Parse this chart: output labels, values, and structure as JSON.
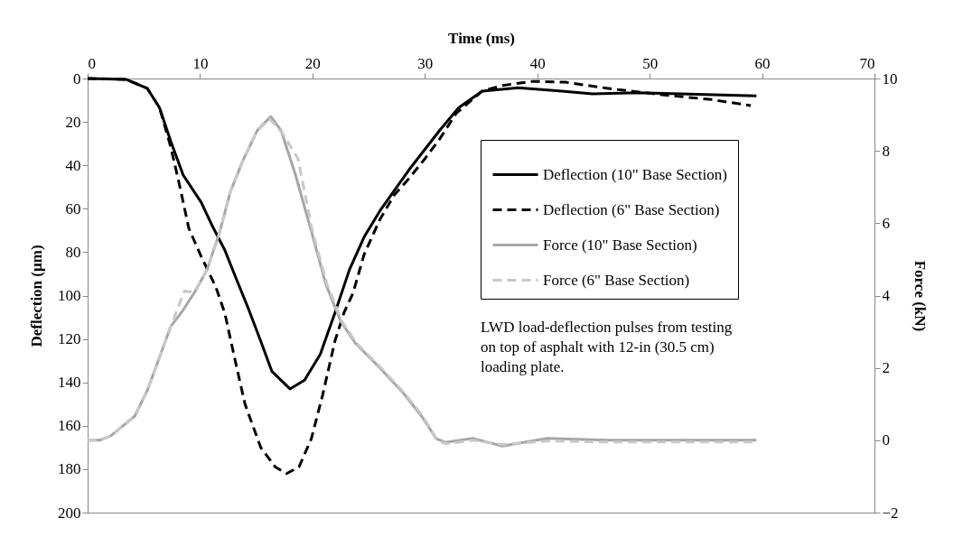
{
  "chart_data": {
    "type": "line",
    "xlabel": "Time (ms)",
    "ylabel": "Deflection (µm)",
    "y2label": "Force (kN)",
    "xlim": [
      0,
      70
    ],
    "xticks": [
      0,
      10,
      20,
      30,
      40,
      50,
      60,
      70
    ],
    "ylim": [
      200,
      0
    ],
    "yticks": [
      0,
      20,
      40,
      60,
      80,
      100,
      120,
      140,
      160,
      180,
      200
    ],
    "y2lim": [
      -2,
      10
    ],
    "y2ticks": [
      -2,
      0,
      2,
      4,
      6,
      8,
      10
    ],
    "grid": false,
    "legend": "top right",
    "marker": "none",
    "annotations": [
      "LWD load-deflection pulses from testing on top of asphalt with 12-in (30.5 cm) loading plate."
    ],
    "series": [
      {
        "name": "Deflection (10\" Base Section)",
        "color": "#000000",
        "line_style": "solid",
        "x": [
          0,
          3.4,
          5.3,
          6.4,
          7.4,
          8.5,
          10.1,
          11.1,
          12.2,
          13.2,
          14.3,
          15.4,
          16.4,
          18,
          19.3,
          20.7,
          22,
          23.3,
          24.6,
          26,
          28.6,
          31.3,
          33,
          35.1,
          38.3,
          42.2,
          44.9,
          48.9,
          52.8,
          59.5
        ],
        "values": [
          0,
          0.4,
          4.5,
          13.5,
          29,
          44.5,
          57,
          68,
          79,
          92,
          106,
          121,
          135,
          143,
          139,
          127,
          108,
          88,
          73,
          61,
          42,
          24,
          13.5,
          5.8,
          4.3,
          5.8,
          7.1,
          6.5,
          7.1,
          8
        ]
      },
      {
        "name": "Deflection (6\" Base Section)",
        "color": "#000000",
        "line_style": "dashed",
        "x": [
          0,
          3.4,
          5.3,
          6.4,
          7.4,
          8.2,
          9,
          10.1,
          11.4,
          12.2,
          13,
          14,
          15.4,
          16.7,
          17.7,
          18.8,
          19.9,
          20.9,
          22,
          22.8,
          23.6,
          24.6,
          26,
          27.3,
          28.6,
          30,
          31.3,
          32.8,
          35.1,
          36.9,
          39.6,
          42.5,
          46.2,
          51.5,
          55.5,
          59
        ],
        "values": [
          0,
          0.4,
          4.5,
          13.5,
          31.6,
          49.7,
          69,
          82,
          96,
          108,
          127,
          150,
          170,
          179,
          182,
          179,
          166,
          146,
          121,
          108,
          99,
          81,
          65,
          53.5,
          46,
          37,
          28,
          16,
          5.8,
          3.2,
          1.3,
          1.7,
          4.5,
          7.7,
          9.7,
          12.5
        ]
      },
      {
        "name": "Force (10\" Base Section)",
        "color": "#a6a6a6",
        "line_style": "solid",
        "axis": "y2",
        "x": [
          0,
          1.1,
          2.1,
          4.2,
          5.3,
          6.4,
          7.4,
          8.5,
          9.5,
          10.6,
          11.7,
          12.7,
          13.8,
          15.1,
          16.3,
          17.2,
          18.5,
          19.9,
          21.2,
          22.5,
          23.8,
          26,
          28.1,
          29.7,
          31,
          31.8,
          34.3,
          36.9,
          40.9,
          46.2,
          59.5
        ],
        "values": [
          0,
          0,
          0.13,
          0.67,
          1.37,
          2.3,
          3.15,
          3.6,
          4.08,
          4.7,
          5.7,
          6.87,
          7.72,
          8.57,
          8.95,
          8.57,
          7.33,
          5.78,
          4.31,
          3.3,
          2.69,
          2,
          1.3,
          0.67,
          0.05,
          -0.06,
          0.05,
          -0.16,
          0.05,
          0,
          0
        ]
      },
      {
        "name": "Force (6\" Base Section)",
        "color": "#c8c8c8",
        "line_style": "dashed",
        "axis": "y2",
        "x": [
          0,
          1.1,
          2.1,
          4.2,
          5.3,
          6.4,
          7.4,
          8.6,
          9.5,
          10.6,
          11.7,
          12.7,
          13.8,
          15.1,
          16.2,
          17.3,
          18.7,
          20,
          21.3,
          22.6,
          23.9,
          26.1,
          28.2,
          29.8,
          31.1,
          31.9,
          34.3,
          36.9,
          40.9,
          46.2,
          59.5
        ],
        "values": [
          0,
          0,
          0.13,
          0.67,
          1.37,
          2.3,
          3.15,
          4.12,
          4.1,
          4.7,
          5.7,
          6.87,
          7.72,
          8.57,
          8.88,
          8.5,
          7.8,
          5.78,
          4.31,
          3.3,
          2.69,
          2,
          1.3,
          0.67,
          0.0,
          -0.1,
          0.0,
          -0.12,
          -0.02,
          -0.05,
          -0.05
        ]
      }
    ]
  }
}
